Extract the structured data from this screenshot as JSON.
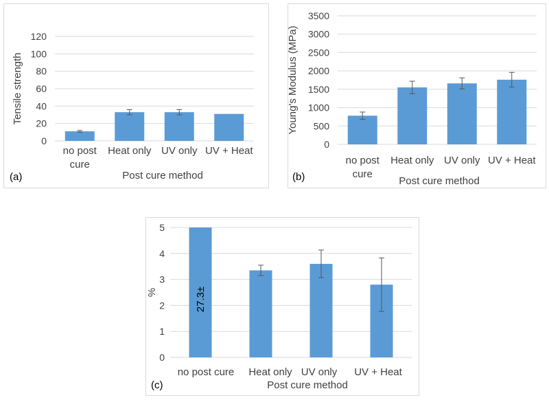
{
  "chart_data": [
    {
      "type": "bar",
      "panel_label": "(a)",
      "categories": [
        "no post cure",
        "Heat only",
        "UV only",
        "UV + Heat"
      ],
      "category_lines": [
        [
          "no post",
          "cure"
        ],
        [
          "Heat only"
        ],
        [
          "UV only"
        ],
        [
          "UV + Heat"
        ]
      ],
      "values": [
        11,
        33,
        33,
        31
      ],
      "errors": [
        1,
        3,
        3,
        0
      ],
      "xlabel": "Post cure method",
      "ylabel": "Tensile strength",
      "ylim": [
        0,
        120
      ],
      "yticks": [
        0,
        20,
        40,
        60,
        80,
        100,
        120
      ],
      "bar_color": "#5b9bd5",
      "grid": true
    },
    {
      "type": "bar",
      "panel_label": "(b)",
      "categories": [
        "no post cure",
        "Heat only",
        "UV only",
        "UV + Heat"
      ],
      "category_lines": [
        [
          "no post",
          "cure"
        ],
        [
          "Heat only"
        ],
        [
          "UV only"
        ],
        [
          "UV + Heat"
        ]
      ],
      "values": [
        780,
        1550,
        1660,
        1760
      ],
      "errors": [
        100,
        170,
        150,
        200
      ],
      "xlabel": "Post cure method",
      "ylabel": "Young's Modulus (MPa)",
      "ylim": [
        0,
        3500
      ],
      "yticks": [
        0,
        500,
        1000,
        1500,
        2000,
        2500,
        3000,
        3500
      ],
      "bar_color": "#5b9bd5",
      "grid": true
    },
    {
      "type": "bar",
      "panel_label": "(c)",
      "categories": [
        "no post cure",
        "Heat only",
        "UV only",
        "UV + Heat"
      ],
      "category_lines": [
        [
          "no post cure"
        ],
        [
          "Heat only"
        ],
        [
          "UV only"
        ],
        [
          "UV + Heat"
        ]
      ],
      "values": [
        5,
        3.35,
        3.6,
        2.8
      ],
      "errors": [
        0,
        0.2,
        0.53,
        1.03
      ],
      "bar_text": [
        "27.3±",
        "",
        "",
        ""
      ],
      "xlabel": "Post cure method",
      "ylabel": "%",
      "ylim": [
        0,
        5
      ],
      "yticks": [
        0,
        1,
        2,
        3,
        4,
        5
      ],
      "bar_color": "#5b9bd5",
      "grid": true
    }
  ]
}
